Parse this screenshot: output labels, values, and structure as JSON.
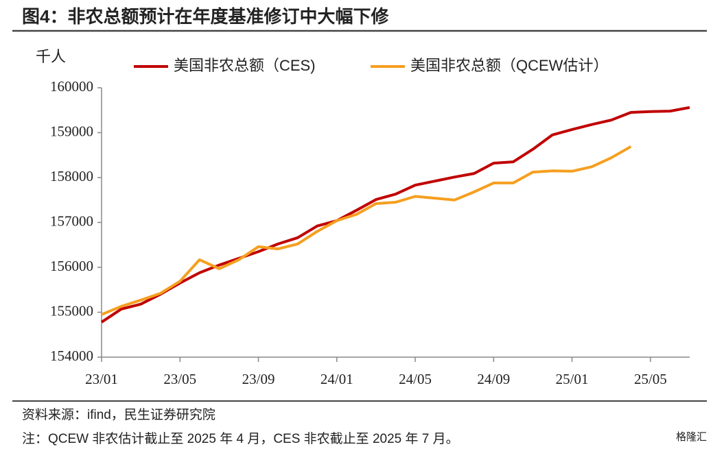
{
  "chart_data": {
    "type": "line",
    "title": "图4：非农总额预计在年度基准修订中大幅下修",
    "y_axis_label": "千人",
    "categories": [
      "23/01",
      null,
      null,
      null,
      "23/05",
      null,
      null,
      null,
      "23/09",
      null,
      null,
      null,
      "24/01",
      null,
      null,
      null,
      "24/05",
      null,
      null,
      null,
      "24/09",
      null,
      null,
      null,
      "25/01",
      null,
      null,
      null,
      "25/05",
      null,
      null
    ],
    "series": [
      {
        "name": "美国非农总额（CES)",
        "color": "#c00000",
        "values": [
          154780,
          155070,
          155180,
          155400,
          155650,
          155880,
          156050,
          156200,
          156350,
          156520,
          156660,
          156920,
          157040,
          157270,
          157510,
          157630,
          157830,
          157920,
          158010,
          158090,
          158320,
          158350,
          158630,
          158950,
          159070,
          159180,
          159280,
          159450,
          159470,
          159480,
          159560
        ]
      },
      {
        "name": "美国非农总额（QCEW估计）",
        "color": "#f59f1f",
        "values": [
          154950,
          155130,
          155270,
          155420,
          155690,
          156170,
          155970,
          156170,
          156460,
          156410,
          156520,
          156800,
          157040,
          157180,
          157420,
          157450,
          157580,
          157540,
          157500,
          157680,
          157880,
          157880,
          158120,
          158150,
          158140,
          158240,
          158440,
          158690,
          null,
          null,
          null
        ]
      }
    ],
    "ylim": [
      154000,
      160000
    ],
    "yticks": [
      154000,
      155000,
      156000,
      157000,
      158000,
      159000,
      160000
    ],
    "grid": false,
    "legend": "top",
    "source": "资料来源：ifind，民生证券研究院",
    "note": "注：QCEW 非农估计截止至 2025 年 4 月，CES 非农截止至 2025 年 7 月。",
    "watermark": "格隆汇"
  }
}
